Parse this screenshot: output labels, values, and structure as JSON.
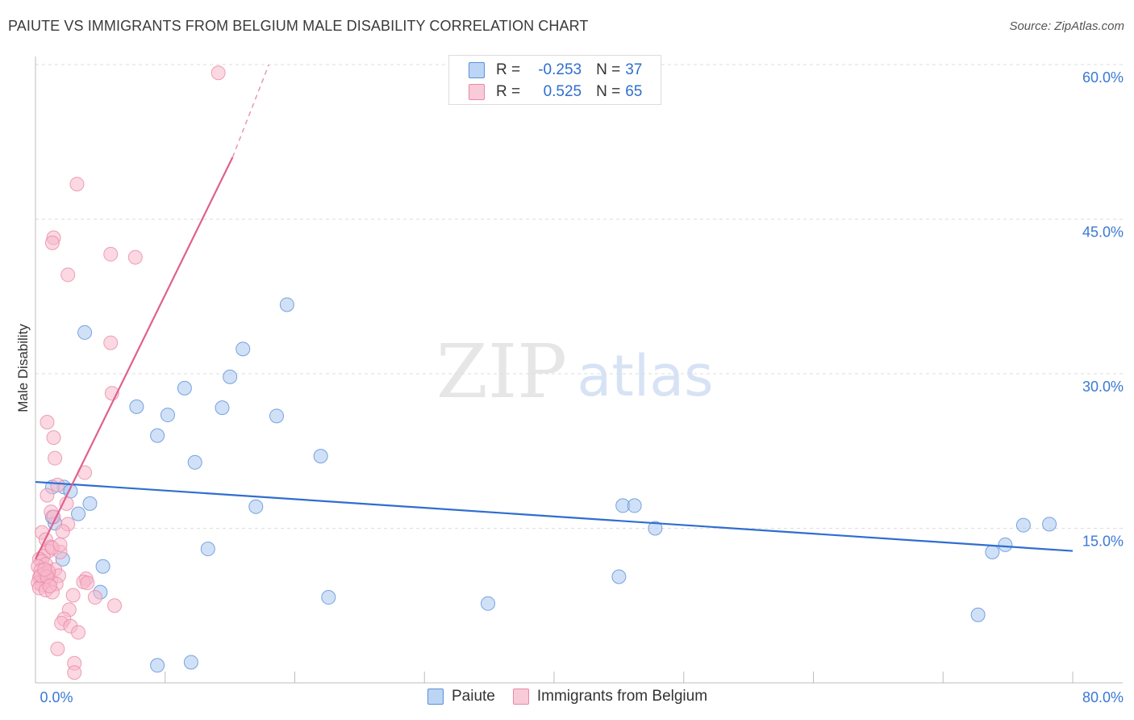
{
  "title": "PAIUTE VS IMMIGRANTS FROM BELGIUM MALE DISABILITY CORRELATION CHART",
  "source": "Source: ZipAtlas.com",
  "watermark": {
    "zip": "ZIP",
    "atlas": "atlas"
  },
  "legend": {
    "rows": [
      {
        "r_label": "R =",
        "r_value": "-0.253",
        "n_label": "N =",
        "n_value": "37"
      },
      {
        "r_label": "R =",
        "r_value": "0.525",
        "n_label": "N =",
        "n_value": "65"
      }
    ]
  },
  "colors": {
    "paiute_fill": "#a9c8f0",
    "paiute_stroke": "#5a8fd6",
    "paiute_line": "#2f6ecf",
    "belgium_fill": "#f7b8cb",
    "belgium_stroke": "#e989a8",
    "belgium_line": "#e0608e",
    "axis_text": "#3a78d4",
    "grid": "#dedede"
  },
  "chart_data": {
    "type": "scatter",
    "title": "PAIUTE VS IMMIGRANTS FROM BELGIUM MALE DISABILITY CORRELATION CHART",
    "xlabel": "",
    "ylabel": "Male Disability",
    "xlim": [
      0,
      80
    ],
    "ylim": [
      0,
      60
    ],
    "x_tick_labels": [
      "0.0%",
      "80.0%"
    ],
    "y_ticks": [
      15,
      30,
      45,
      60
    ],
    "y_tick_labels": [
      "15.0%",
      "30.0%",
      "45.0%",
      "60.0%"
    ],
    "series": [
      {
        "name": "Paiute",
        "r": -0.253,
        "n": 37,
        "trend": {
          "x0": 0,
          "y0": 19.5,
          "x1": 80,
          "y1": 12.8
        },
        "points": [
          [
            3.8,
            34.0
          ],
          [
            7.8,
            26.8
          ],
          [
            9.4,
            24.0
          ],
          [
            10.2,
            26.0
          ],
          [
            11.5,
            28.6
          ],
          [
            12.0,
            2.0
          ],
          [
            9.4,
            1.7
          ],
          [
            12.3,
            21.4
          ],
          [
            13.3,
            13.0
          ],
          [
            14.4,
            26.7
          ],
          [
            15.0,
            29.7
          ],
          [
            16.0,
            32.4
          ],
          [
            17.0,
            17.1
          ],
          [
            18.6,
            25.9
          ],
          [
            19.4,
            36.7
          ],
          [
            3.3,
            16.4
          ],
          [
            4.2,
            17.4
          ],
          [
            1.5,
            15.5
          ],
          [
            2.2,
            19.0
          ],
          [
            2.7,
            18.6
          ],
          [
            1.3,
            16.1
          ],
          [
            2.1,
            12.0
          ],
          [
            5.2,
            11.3
          ],
          [
            5.0,
            8.8
          ],
          [
            22.0,
            22.0
          ],
          [
            22.6,
            8.3
          ],
          [
            34.9,
            7.7
          ],
          [
            45.3,
            17.2
          ],
          [
            46.2,
            17.2
          ],
          [
            47.8,
            15.0
          ],
          [
            45.0,
            10.3
          ],
          [
            72.7,
            6.6
          ],
          [
            73.8,
            12.7
          ],
          [
            74.8,
            13.4
          ],
          [
            76.2,
            15.3
          ],
          [
            78.2,
            15.4
          ],
          [
            1.3,
            19.0
          ]
        ]
      },
      {
        "name": "Immigrants from Belgium",
        "r": 0.525,
        "n": 65,
        "trend": {
          "x0": 0,
          "y0": 12.0,
          "x1": 15.2,
          "y1": 51.0
        },
        "trend_dashed": {
          "x0": 15.2,
          "y0": 51.0,
          "x1": 18.0,
          "y1": 60.0
        },
        "points": [
          [
            14.1,
            59.2
          ],
          [
            3.2,
            48.4
          ],
          [
            1.4,
            43.2
          ],
          [
            1.3,
            42.7
          ],
          [
            5.8,
            41.6
          ],
          [
            7.7,
            41.3
          ],
          [
            2.5,
            39.6
          ],
          [
            5.8,
            33.0
          ],
          [
            5.9,
            28.1
          ],
          [
            0.9,
            25.3
          ],
          [
            1.4,
            23.8
          ],
          [
            1.5,
            21.8
          ],
          [
            3.8,
            20.4
          ],
          [
            1.7,
            19.2
          ],
          [
            0.9,
            18.2
          ],
          [
            2.4,
            17.4
          ],
          [
            1.2,
            16.6
          ],
          [
            1.4,
            16.1
          ],
          [
            2.5,
            15.4
          ],
          [
            2.1,
            14.7
          ],
          [
            0.5,
            14.6
          ],
          [
            0.8,
            13.9
          ],
          [
            1.2,
            13.2
          ],
          [
            1.0,
            12.8
          ],
          [
            0.6,
            12.3
          ],
          [
            0.3,
            12.0
          ],
          [
            0.5,
            11.8
          ],
          [
            0.8,
            11.5
          ],
          [
            0.2,
            11.3
          ],
          [
            0.4,
            10.9
          ],
          [
            0.7,
            10.6
          ],
          [
            1.0,
            10.5
          ],
          [
            0.3,
            10.2
          ],
          [
            0.6,
            10.0
          ],
          [
            1.2,
            9.9
          ],
          [
            0.2,
            9.7
          ],
          [
            0.5,
            9.5
          ],
          [
            0.3,
            9.2
          ],
          [
            0.8,
            9.0
          ],
          [
            1.5,
            11.0
          ],
          [
            1.8,
            10.4
          ],
          [
            1.6,
            9.6
          ],
          [
            1.9,
            12.7
          ],
          [
            1.3,
            13.1
          ],
          [
            1.0,
            10.8
          ],
          [
            3.9,
            10.1
          ],
          [
            3.7,
            9.8
          ],
          [
            4.0,
            9.7
          ],
          [
            4.6,
            8.3
          ],
          [
            6.1,
            7.5
          ],
          [
            2.6,
            7.1
          ],
          [
            2.2,
            6.2
          ],
          [
            2.0,
            5.8
          ],
          [
            2.7,
            5.5
          ],
          [
            3.3,
            4.9
          ],
          [
            1.7,
            3.3
          ],
          [
            3.0,
            1.9
          ],
          [
            3.0,
            1.0
          ],
          [
            1.3,
            8.8
          ],
          [
            1.9,
            13.4
          ],
          [
            0.4,
            10.4
          ],
          [
            0.9,
            10.3
          ],
          [
            1.1,
            9.4
          ],
          [
            0.7,
            11.0
          ],
          [
            2.9,
            8.5
          ]
        ]
      }
    ]
  },
  "bottom_legend": [
    "Paiute",
    "Immigrants from Belgium"
  ]
}
